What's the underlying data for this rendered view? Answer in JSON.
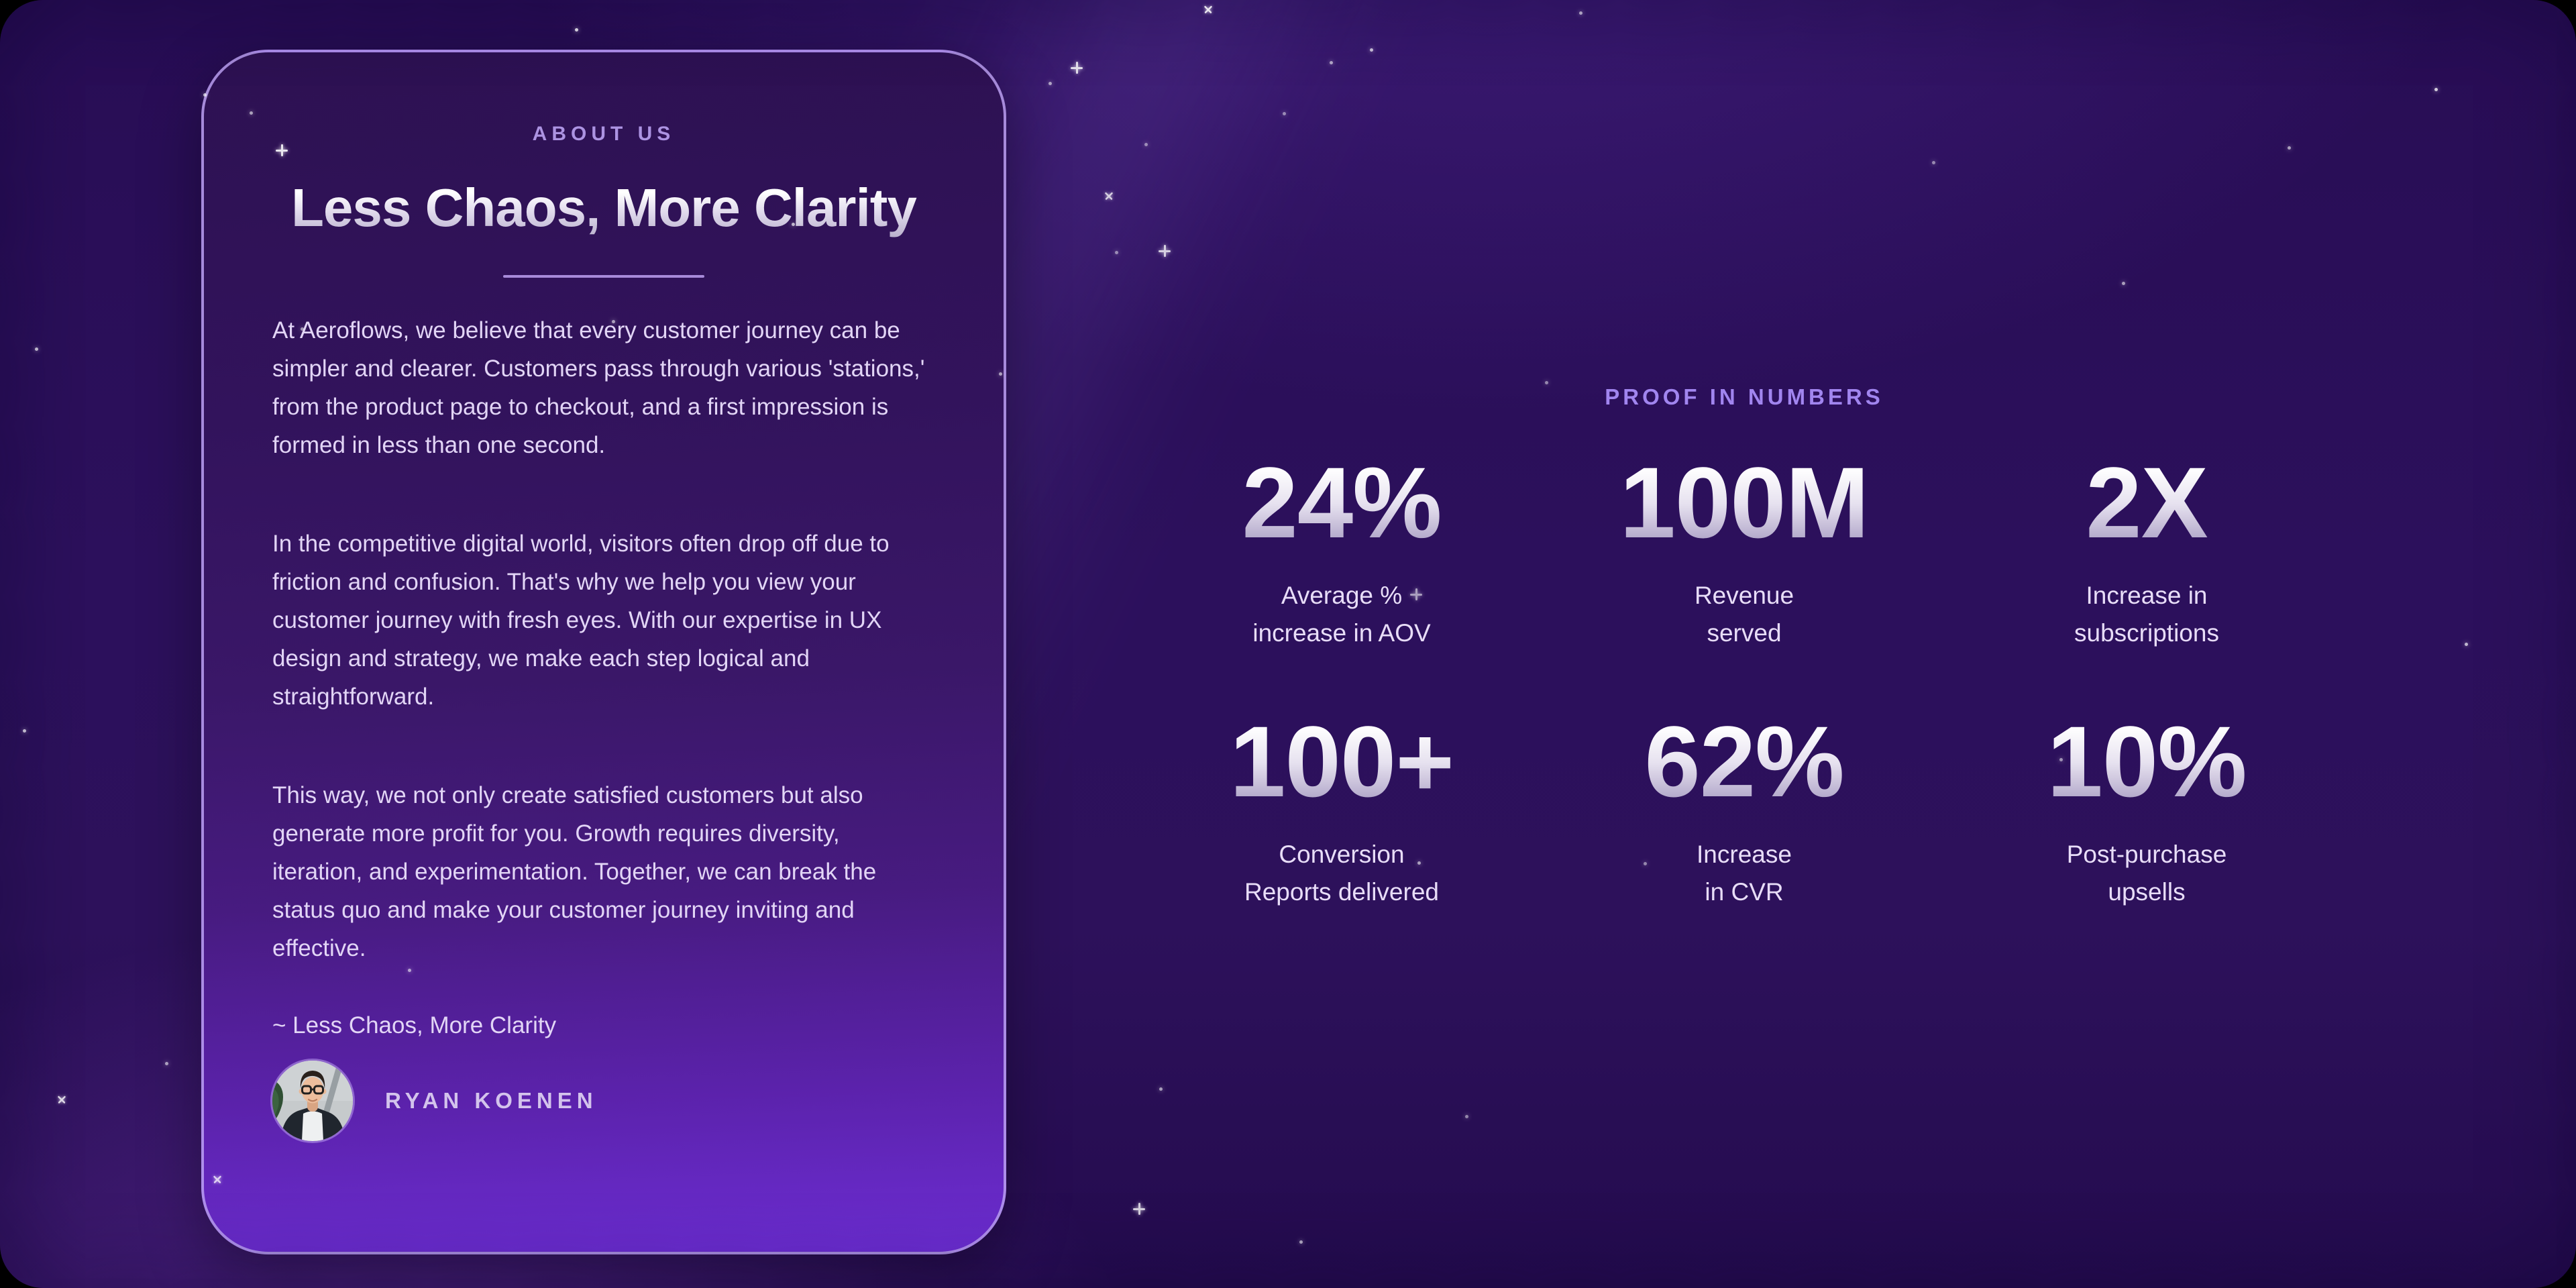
{
  "about": {
    "eyebrow": "ABOUT US",
    "title": "Less Chaos, More Clarity",
    "paragraphs": [
      "At Aeroflows, we believe that every customer journey can be simpler and clearer. Customers pass through various 'stations,' from the product page to checkout, and a first impression is formed in less than one second.",
      "In the competitive digital world, visitors often drop off due to friction and confusion. That's why we help you view your customer journey with fresh eyes. With our expertise in UX design and strategy, we make each step logical and straightforward.",
      "This way, we not only create satisfied customers but also generate more profit for you. Growth requires diversity, iteration, and experimentation. Together, we can break the status quo and make your customer journey inviting and effective."
    ],
    "signature": "~ Less Chaos, More Clarity",
    "author_name": "RYAN KOENEN"
  },
  "stats": {
    "eyebrow": "PROOF IN NUMBERS",
    "items": [
      {
        "value": "24%",
        "label_lines": [
          "Average %",
          "increase in AOV"
        ]
      },
      {
        "value": "100M",
        "label_lines": [
          "Revenue",
          "served"
        ]
      },
      {
        "value": "2X",
        "label_lines": [
          "Increase in",
          "subscriptions"
        ]
      },
      {
        "value": "100+",
        "label_lines": [
          "Conversion",
          "Reports delivered"
        ]
      },
      {
        "value": "62%",
        "label_lines": [
          "Increase",
          "in CVR"
        ]
      },
      {
        "value": "10%",
        "label_lines": [
          "Post-purchase",
          "upsells"
        ]
      }
    ]
  },
  "colors": {
    "background": "#2a0e58",
    "card_gradient_top": "#2d1152",
    "card_gradient_bottom": "#6c2dd2",
    "card_border": "#bba0f2",
    "about_eyebrow_text": "#ac93e2",
    "stats_eyebrow_text": "#a185ef",
    "body_text": "#e2d5f6",
    "divider": "#a78ad9",
    "stat_value_gradient_top": "#ffffff",
    "stat_value_gradient_bottom": "#9f93bd"
  }
}
